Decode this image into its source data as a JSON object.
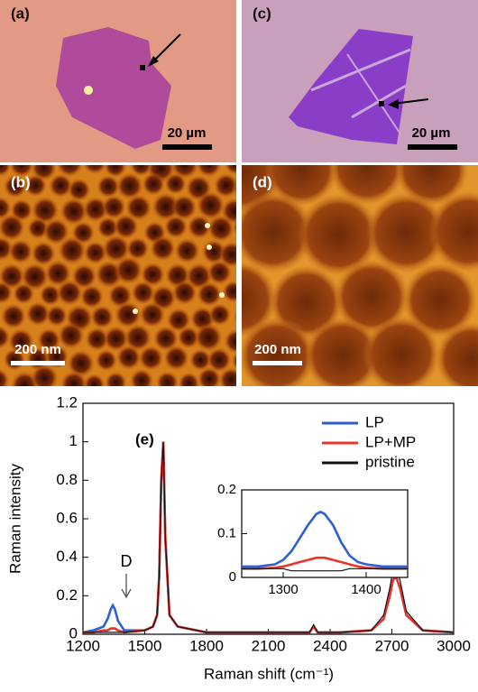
{
  "panels": [
    {
      "label": "(a)",
      "scalebar": "20 µm"
    },
    {
      "label": "(c)",
      "scalebar": "20 µm"
    },
    {
      "label": "(b)",
      "scalebar": "200 nm"
    },
    {
      "label": "(d)",
      "scalebar": "200 nm"
    }
  ],
  "chart_data": [
    {
      "type": "line",
      "xlabel": "Raman shift (cm⁻¹)",
      "ylabel": "Raman intensity",
      "annotations": [
        "(e)",
        "D"
      ],
      "legend": "upper right",
      "x": [
        1200,
        1250,
        1300,
        1320,
        1335,
        1345,
        1355,
        1370,
        1400,
        1500,
        1540,
        1560,
        1570,
        1580,
        1590,
        1600,
        1620,
        1660,
        1800,
        2100,
        2300,
        2320,
        2340,
        2450,
        2600,
        2660,
        2690,
        2705,
        2720,
        2740,
        2770,
        2850,
        3000
      ],
      "series": [
        {
          "name": "LP",
          "color": "#2f5fd0",
          "values": [
            0.01,
            0.02,
            0.04,
            0.08,
            0.13,
            0.15,
            0.13,
            0.07,
            0.02,
            0.02,
            0.04,
            0.1,
            0.3,
            0.8,
            1.0,
            0.5,
            0.1,
            0.04,
            0.01,
            0.01,
            0.01,
            0.04,
            0.01,
            0.01,
            0.02,
            0.08,
            0.2,
            0.28,
            0.3,
            0.24,
            0.1,
            0.02,
            0.01
          ]
        },
        {
          "name": "LP+MP",
          "color": "#e8342a",
          "values": [
            0.01,
            0.01,
            0.02,
            0.02,
            0.03,
            0.03,
            0.03,
            0.02,
            0.01,
            0.02,
            0.04,
            0.1,
            0.3,
            0.8,
            1.0,
            0.5,
            0.1,
            0.04,
            0.01,
            0.01,
            0.01,
            0.04,
            0.01,
            0.01,
            0.02,
            0.08,
            0.2,
            0.28,
            0.3,
            0.24,
            0.1,
            0.02,
            0.01
          ]
        },
        {
          "name": "pristine",
          "color": "#111111",
          "values": [
            0.01,
            0.01,
            0.01,
            0.01,
            0.01,
            0.01,
            0.01,
            0.01,
            0.01,
            0.02,
            0.04,
            0.1,
            0.3,
            0.8,
            1.0,
            0.5,
            0.1,
            0.04,
            0.01,
            0.01,
            0.01,
            0.05,
            0.01,
            0.01,
            0.02,
            0.1,
            0.24,
            0.33,
            0.35,
            0.28,
            0.12,
            0.02,
            0.01
          ]
        }
      ],
      "xlim": [
        1200,
        3000
      ],
      "xticks": [
        1200,
        1500,
        1800,
        2100,
        2400,
        2700,
        3000
      ],
      "ylim": [
        0,
        1.2
      ],
      "yticks": [
        0,
        0.2,
        0.4,
        0.6,
        0.8,
        1,
        1.2
      ]
    },
    {
      "type": "line",
      "x": [
        1250,
        1270,
        1290,
        1300,
        1310,
        1320,
        1330,
        1340,
        1345,
        1350,
        1360,
        1370,
        1380,
        1390,
        1400,
        1420,
        1450
      ],
      "series": [
        {
          "color": "#2f5fd0",
          "values": [
            0.025,
            0.025,
            0.03,
            0.04,
            0.06,
            0.09,
            0.12,
            0.145,
            0.15,
            0.145,
            0.12,
            0.08,
            0.05,
            0.035,
            0.03,
            0.025,
            0.025
          ]
        },
        {
          "color": "#e8342a",
          "values": [
            0.02,
            0.02,
            0.022,
            0.025,
            0.03,
            0.035,
            0.04,
            0.045,
            0.045,
            0.045,
            0.04,
            0.035,
            0.03,
            0.025,
            0.022,
            0.02,
            0.02
          ]
        },
        {
          "color": "#111111",
          "values": [
            0.02,
            0.02,
            0.02,
            0.02,
            0.015,
            0.015,
            0.015,
            0.015,
            0.015,
            0.015,
            0.015,
            0.015,
            0.02,
            0.02,
            0.02,
            0.02,
            0.02
          ]
        }
      ],
      "xlim": [
        1250,
        1450
      ],
      "xticks": [
        1300,
        1400
      ],
      "ylim": [
        0,
        0.2
      ],
      "yticks": [
        0,
        0.1,
        0.2
      ]
    }
  ]
}
